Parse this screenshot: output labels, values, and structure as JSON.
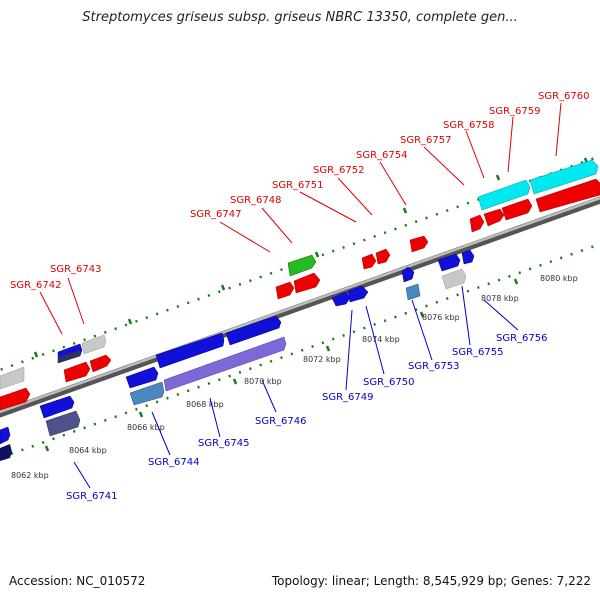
{
  "title": "Streptomyces griseus subsp. griseus NBRC 13350, complete gen...",
  "footer": {
    "accession": "Accession: NC_010572",
    "stats": "Topology: linear; Length: 8,545,929 bp; Genes: 7,222"
  },
  "scale_labels": [
    "8062 kbp",
    "8064 kbp",
    "8066 kbp",
    "8068 kbp",
    "8070 kbp",
    "8072 kbp",
    "8074 kbp",
    "8076 kbp",
    "8078 kbp",
    "8080 kbp"
  ],
  "top_gene_labels": [
    "SGR_6742",
    "SGR_6743",
    "SGR_6747",
    "SGR_6748",
    "SGR_6751",
    "SGR_6752",
    "SGR_6754",
    "SGR_6757",
    "SGR_6758",
    "SGR_6759",
    "SGR_6760"
  ],
  "bottom_gene_labels": [
    "SGR_6741",
    "SGR_6744",
    "SGR_6745",
    "SGR_6746",
    "SGR_6749",
    "SGR_6750",
    "SGR_6753",
    "SGR_6755",
    "SGR_6756"
  ],
  "colors": {
    "forward_gene": "#ff0000",
    "reverse_gene": "#0000e0",
    "highlight_cyan": "#00e8f0",
    "highlight_green": "#22bb22",
    "steelblue": "#4a86c0",
    "purple": "#7e68d8",
    "gray": "#c8c8c8",
    "backbone": "#808080",
    "tick": "#1a7a1a"
  }
}
